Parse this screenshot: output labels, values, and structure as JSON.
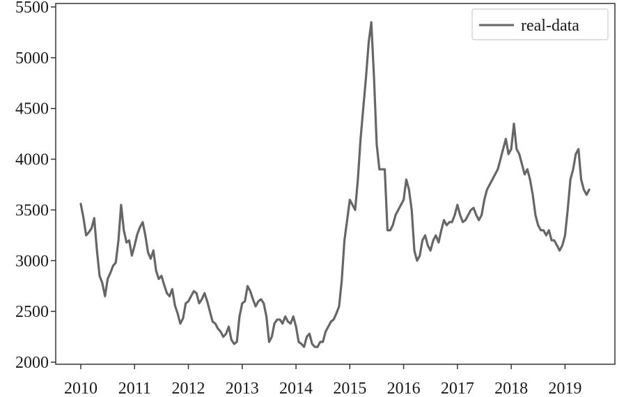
{
  "chart_data": {
    "type": "line",
    "title": "",
    "xlabel": "",
    "ylabel": "",
    "xlim": [
      2010.0,
      2019.5
    ],
    "ylim": [
      2000,
      5500
    ],
    "x_ticks": [
      "2010",
      "2011",
      "2012",
      "2013",
      "2014",
      "2015",
      "2016",
      "2017",
      "2018",
      "2019"
    ],
    "y_ticks": [
      "2000",
      "2500",
      "3000",
      "3500",
      "4000",
      "4500",
      "5000",
      "5500"
    ],
    "legend": {
      "position": "top-right",
      "entries": [
        "real-data"
      ]
    },
    "grid": false,
    "colors": {
      "series": "#666666",
      "axes": "#333333"
    },
    "series": [
      {
        "name": "real-data",
        "x": [
          2010.0,
          2010.05,
          2010.1,
          2010.15,
          2010.2,
          2010.25,
          2010.3,
          2010.35,
          2010.4,
          2010.45,
          2010.5,
          2010.55,
          2010.6,
          2010.65,
          2010.7,
          2010.75,
          2010.8,
          2010.85,
          2010.9,
          2010.95,
          2011.0,
          2011.05,
          2011.1,
          2011.15,
          2011.2,
          2011.25,
          2011.3,
          2011.35,
          2011.4,
          2011.45,
          2011.5,
          2011.55,
          2011.6,
          2011.65,
          2011.7,
          2011.75,
          2011.8,
          2011.85,
          2011.9,
          2011.95,
          2012.0,
          2012.05,
          2012.1,
          2012.15,
          2012.2,
          2012.25,
          2012.3,
          2012.35,
          2012.4,
          2012.45,
          2012.5,
          2012.55,
          2012.6,
          2012.65,
          2012.7,
          2012.75,
          2012.8,
          2012.85,
          2012.9,
          2012.95,
          2013.0,
          2013.05,
          2013.1,
          2013.15,
          2013.2,
          2013.25,
          2013.3,
          2013.35,
          2013.4,
          2013.45,
          2013.5,
          2013.55,
          2013.6,
          2013.65,
          2013.7,
          2013.75,
          2013.8,
          2013.85,
          2013.9,
          2013.95,
          2014.0,
          2014.05,
          2014.1,
          2014.15,
          2014.2,
          2014.25,
          2014.3,
          2014.35,
          2014.4,
          2014.45,
          2014.5,
          2014.55,
          2014.6,
          2014.65,
          2014.7,
          2014.75,
          2014.8,
          2014.85,
          2014.9,
          2014.95,
          2015.0,
          2015.05,
          2015.1,
          2015.15,
          2015.2,
          2015.25,
          2015.3,
          2015.35,
          2015.4,
          2015.45,
          2015.5,
          2015.55,
          2015.6,
          2015.65,
          2015.7,
          2015.75,
          2015.8,
          2015.85,
          2015.9,
          2015.95,
          2016.0,
          2016.05,
          2016.1,
          2016.15,
          2016.2,
          2016.25,
          2016.3,
          2016.35,
          2016.4,
          2016.45,
          2016.5,
          2016.55,
          2016.6,
          2016.65,
          2016.7,
          2016.75,
          2016.8,
          2016.85,
          2016.9,
          2016.95,
          2017.0,
          2017.05,
          2017.1,
          2017.15,
          2017.2,
          2017.25,
          2017.3,
          2017.35,
          2017.4,
          2017.45,
          2017.5,
          2017.55,
          2017.6,
          2017.65,
          2017.7,
          2017.75,
          2017.8,
          2017.85,
          2017.9,
          2017.95,
          2018.0,
          2018.05,
          2018.1,
          2018.15,
          2018.2,
          2018.25,
          2018.3,
          2018.35,
          2018.4,
          2018.45,
          2018.5,
          2018.55,
          2018.6,
          2018.65,
          2018.7,
          2018.75,
          2018.8,
          2018.85,
          2018.9,
          2018.95,
          2019.0,
          2019.05,
          2019.1,
          2019.15,
          2019.2,
          2019.25,
          2019.3,
          2019.35,
          2019.4,
          2019.45
        ],
        "values": [
          3560,
          3420,
          3250,
          3280,
          3320,
          3420,
          3100,
          2850,
          2780,
          2650,
          2820,
          2880,
          2950,
          2980,
          3200,
          3550,
          3300,
          3180,
          3200,
          3050,
          3150,
          3260,
          3330,
          3380,
          3250,
          3080,
          3020,
          3100,
          2900,
          2820,
          2850,
          2760,
          2680,
          2650,
          2720,
          2560,
          2480,
          2380,
          2430,
          2580,
          2600,
          2650,
          2700,
          2680,
          2580,
          2620,
          2680,
          2600,
          2500,
          2400,
          2380,
          2330,
          2300,
          2250,
          2280,
          2350,
          2220,
          2180,
          2200,
          2450,
          2580,
          2600,
          2750,
          2700,
          2620,
          2550,
          2600,
          2620,
          2580,
          2450,
          2200,
          2250,
          2380,
          2420,
          2420,
          2380,
          2450,
          2400,
          2380,
          2450,
          2350,
          2200,
          2180,
          2150,
          2250,
          2280,
          2180,
          2150,
          2150,
          2200,
          2200,
          2300,
          2350,
          2400,
          2420,
          2480,
          2550,
          2800,
          3200,
          3400,
          3600,
          3550,
          3500,
          3800,
          4200,
          4500,
          4800,
          5150,
          5350,
          4800,
          4150,
          3900,
          3900,
          3900,
          3300,
          3300,
          3350,
          3450,
          3500,
          3550,
          3600,
          3800,
          3700,
          3500,
          3100,
          3000,
          3050,
          3200,
          3250,
          3150,
          3100,
          3200,
          3250,
          3180,
          3300,
          3400,
          3350,
          3380,
          3380,
          3450,
          3550,
          3450,
          3380,
          3400,
          3450,
          3500,
          3520,
          3450,
          3400,
          3450,
          3600,
          3700,
          3750,
          3800,
          3850,
          3900,
          4000,
          4100,
          4200,
          4050,
          4100,
          4350,
          4100,
          4050,
          3950,
          3850,
          3900,
          3800,
          3650,
          3450,
          3350,
          3300,
          3300,
          3250,
          3300,
          3200,
          3200,
          3150,
          3100,
          3150,
          3250,
          3500,
          3800,
          3900,
          4050,
          4100,
          3800,
          3700,
          3650,
          3700
        ]
      }
    ]
  }
}
